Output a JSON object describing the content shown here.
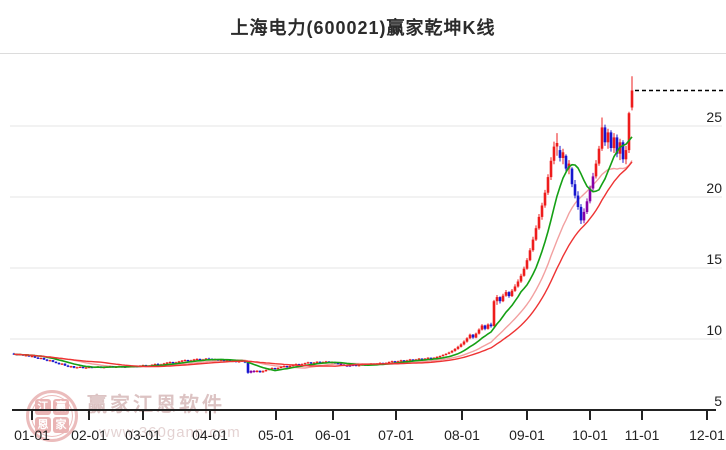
{
  "title": "上海电力(600021)赢家乾坤K线",
  "watermark": {
    "brand": "赢家江恩软件",
    "url": "www.360gann.com",
    "logo_chars": [
      "江",
      "赢",
      "恩",
      "家"
    ]
  },
  "colors": {
    "candle_up": "#ee1c1c",
    "candle_down": "#1717cf",
    "candle_signal": "#8500a8",
    "ma_fast_green": "#15a015",
    "ma_slow_red": "#ee3333",
    "ma_mid_pink": "#f2a0a0",
    "grid": "#e6e6e6",
    "axis": "#222222",
    "last_price_line": "#000000"
  },
  "chart_data": {
    "type": "candlestick",
    "title": "上海电力(600021)赢家乾坤K线",
    "x_axis": {
      "tick_labels": [
        "01-01",
        "02-01",
        "03-01",
        "04-01",
        "05-01",
        "06-01",
        "07-01",
        "08-01",
        "09-01",
        "10-01",
        "11-01",
        "12-01"
      ],
      "tick_x": [
        32,
        89,
        143,
        210,
        276,
        333,
        396,
        462,
        527,
        590,
        642,
        707
      ]
    },
    "y_axis": {
      "tick_labels": [
        "25",
        "20",
        "15",
        "10",
        "5"
      ],
      "tick_values": [
        25,
        20,
        15,
        10,
        5
      ],
      "range": [
        5,
        29.6
      ],
      "grid": true
    },
    "last_price": 27.5,
    "last_price_line": {
      "style": "dashed",
      "price": 27.5
    },
    "ma_windows": {
      "fast_green": 10,
      "mid_pink": 20,
      "slow_red": 30
    },
    "purple_indices": [
      37,
      38,
      39,
      40,
      41,
      79,
      80,
      109,
      110,
      111,
      112,
      113,
      190,
      191,
      192,
      193
    ],
    "candles": [
      [
        8.98,
        9.02,
        8.9,
        8.93
      ],
      [
        8.93,
        8.97,
        8.85,
        8.88
      ],
      [
        8.88,
        8.95,
        8.84,
        8.92
      ],
      [
        8.92,
        8.94,
        8.8,
        8.83
      ],
      [
        8.83,
        8.9,
        8.78,
        8.86
      ],
      [
        8.86,
        8.88,
        8.74,
        8.77
      ],
      [
        8.77,
        8.84,
        8.72,
        8.8
      ],
      [
        8.8,
        8.82,
        8.66,
        8.68
      ],
      [
        8.68,
        8.74,
        8.6,
        8.62
      ],
      [
        8.62,
        8.7,
        8.58,
        8.67
      ],
      [
        8.67,
        8.68,
        8.52,
        8.55
      ],
      [
        8.55,
        8.6,
        8.44,
        8.47
      ],
      [
        8.47,
        8.54,
        8.42,
        8.51
      ],
      [
        8.51,
        8.52,
        8.36,
        8.39
      ],
      [
        8.39,
        8.44,
        8.28,
        8.31
      ],
      [
        8.31,
        8.36,
        8.2,
        8.23
      ],
      [
        8.23,
        8.3,
        8.18,
        8.27
      ],
      [
        8.27,
        8.28,
        8.1,
        8.13
      ],
      [
        8.13,
        8.18,
        8.02,
        8.05
      ],
      [
        8.05,
        8.12,
        7.98,
        8.09
      ],
      [
        8.09,
        8.1,
        7.94,
        7.97
      ],
      [
        7.97,
        8.04,
        7.92,
        8.01
      ],
      [
        8.01,
        8.06,
        7.96,
        8.04
      ],
      [
        8.04,
        8.05,
        7.92,
        7.95
      ],
      [
        7.95,
        8.02,
        7.9,
        7.99
      ],
      [
        7.99,
        8.06,
        7.96,
        8.03
      ],
      [
        8.03,
        8.08,
        7.96,
        7.99
      ],
      [
        7.99,
        8.06,
        7.95,
        8.04
      ],
      [
        8.04,
        8.1,
        8.0,
        8.07
      ],
      [
        8.07,
        8.08,
        7.95,
        7.98
      ],
      [
        7.98,
        8.05,
        7.94,
        8.02
      ],
      [
        8.02,
        8.09,
        7.98,
        8.06
      ],
      [
        8.06,
        8.12,
        8.02,
        8.09
      ],
      [
        8.09,
        8.1,
        7.97,
        8.0
      ],
      [
        8.0,
        8.07,
        7.96,
        8.04
      ],
      [
        8.04,
        8.11,
        8.0,
        8.08
      ],
      [
        8.08,
        8.09,
        7.97,
        8.01
      ],
      [
        8.01,
        8.08,
        7.97,
        8.05
      ],
      [
        8.05,
        8.12,
        8.01,
        8.09
      ],
      [
        8.09,
        8.15,
        8.04,
        8.12
      ],
      [
        8.12,
        8.13,
        8.0,
        8.04
      ],
      [
        8.04,
        8.12,
        8.01,
        8.09
      ],
      [
        8.09,
        8.16,
        8.05,
        8.13
      ],
      [
        8.13,
        8.2,
        8.09,
        8.17
      ],
      [
        8.17,
        8.18,
        8.05,
        8.08
      ],
      [
        8.08,
        8.16,
        8.04,
        8.13
      ],
      [
        8.13,
        8.22,
        8.1,
        8.19
      ],
      [
        8.19,
        8.28,
        8.15,
        8.24
      ],
      [
        8.24,
        8.3,
        8.12,
        8.16
      ],
      [
        8.16,
        8.26,
        8.13,
        8.22
      ],
      [
        8.22,
        8.32,
        8.18,
        8.28
      ],
      [
        8.28,
        8.38,
        8.24,
        8.34
      ],
      [
        8.34,
        8.42,
        8.3,
        8.38
      ],
      [
        8.38,
        8.4,
        8.26,
        8.3
      ],
      [
        8.3,
        8.4,
        8.26,
        8.36
      ],
      [
        8.36,
        8.46,
        8.32,
        8.42
      ],
      [
        8.42,
        8.52,
        8.38,
        8.48
      ],
      [
        8.48,
        8.56,
        8.44,
        8.52
      ],
      [
        8.52,
        8.54,
        8.4,
        8.44
      ],
      [
        8.44,
        8.54,
        8.4,
        8.5
      ],
      [
        8.5,
        8.6,
        8.46,
        8.56
      ],
      [
        8.56,
        8.64,
        8.5,
        8.6
      ],
      [
        8.6,
        8.62,
        8.48,
        8.52
      ],
      [
        8.52,
        8.6,
        8.46,
        8.56
      ],
      [
        8.56,
        8.66,
        8.52,
        8.62
      ],
      [
        8.62,
        8.68,
        8.55,
        8.58
      ],
      [
        8.58,
        8.64,
        8.5,
        8.54
      ],
      [
        8.54,
        8.62,
        8.5,
        8.59
      ],
      [
        8.59,
        8.6,
        8.46,
        8.5
      ],
      [
        8.5,
        8.58,
        8.44,
        8.55
      ],
      [
        8.55,
        8.56,
        8.42,
        8.46
      ],
      [
        8.46,
        8.54,
        8.42,
        8.51
      ],
      [
        8.51,
        8.52,
        8.38,
        8.42
      ],
      [
        8.42,
        8.5,
        8.38,
        8.47
      ],
      [
        8.47,
        8.48,
        8.34,
        8.38
      ],
      [
        8.38,
        8.46,
        8.34,
        8.43
      ],
      [
        8.43,
        8.5,
        8.4,
        8.47
      ],
      [
        8.47,
        8.48,
        8.3,
        8.34
      ],
      [
        8.34,
        8.36,
        7.55,
        7.62
      ],
      [
        7.62,
        7.8,
        7.58,
        7.75
      ],
      [
        7.75,
        7.82,
        7.62,
        7.68
      ],
      [
        7.68,
        7.8,
        7.64,
        7.77
      ],
      [
        7.77,
        7.78,
        7.62,
        7.66
      ],
      [
        7.66,
        7.8,
        7.63,
        7.74
      ],
      [
        7.74,
        7.86,
        7.7,
        7.82
      ],
      [
        7.82,
        7.94,
        7.78,
        7.9
      ],
      [
        7.9,
        8.0,
        7.86,
        7.96
      ],
      [
        7.96,
        7.98,
        7.84,
        7.88
      ],
      [
        7.88,
        8.0,
        7.85,
        7.97
      ],
      [
        7.97,
        8.08,
        7.93,
        8.04
      ],
      [
        8.04,
        8.14,
        8.0,
        8.1
      ],
      [
        8.1,
        8.12,
        7.98,
        8.02
      ],
      [
        8.02,
        8.14,
        7.99,
        8.1
      ],
      [
        8.1,
        8.22,
        8.06,
        8.17
      ],
      [
        8.17,
        8.28,
        8.13,
        8.24
      ],
      [
        8.24,
        8.26,
        8.12,
        8.16
      ],
      [
        8.16,
        8.28,
        8.13,
        8.23
      ],
      [
        8.23,
        8.34,
        8.19,
        8.3
      ],
      [
        8.3,
        8.4,
        8.26,
        8.36
      ],
      [
        8.36,
        8.38,
        8.24,
        8.28
      ],
      [
        8.28,
        8.38,
        8.24,
        8.34
      ],
      [
        8.34,
        8.44,
        8.3,
        8.4
      ],
      [
        8.4,
        8.42,
        8.28,
        8.32
      ],
      [
        8.32,
        8.42,
        8.28,
        8.38
      ],
      [
        8.38,
        8.46,
        8.32,
        8.42
      ],
      [
        8.42,
        8.44,
        8.3,
        8.34
      ],
      [
        8.34,
        8.42,
        8.28,
        8.38
      ],
      [
        8.38,
        8.4,
        8.26,
        8.3
      ],
      [
        8.3,
        8.36,
        8.22,
        8.26
      ],
      [
        8.26,
        8.28,
        8.14,
        8.18
      ],
      [
        8.18,
        8.24,
        8.1,
        8.14
      ],
      [
        8.14,
        8.2,
        8.04,
        8.08
      ],
      [
        8.08,
        8.18,
        8.04,
        8.14
      ],
      [
        8.14,
        8.22,
        8.08,
        8.18
      ],
      [
        8.18,
        8.2,
        8.06,
        8.1
      ],
      [
        8.1,
        8.2,
        8.06,
        8.16
      ],
      [
        8.16,
        8.26,
        8.12,
        8.22
      ],
      [
        8.22,
        8.24,
        8.1,
        8.14
      ],
      [
        8.14,
        8.24,
        8.1,
        8.2
      ],
      [
        8.2,
        8.3,
        8.16,
        8.26
      ],
      [
        8.26,
        8.28,
        8.16,
        8.2
      ],
      [
        8.2,
        8.3,
        8.16,
        8.26
      ],
      [
        8.26,
        8.36,
        8.22,
        8.32
      ],
      [
        8.32,
        8.34,
        8.22,
        8.26
      ],
      [
        8.26,
        8.36,
        8.22,
        8.32
      ],
      [
        8.32,
        8.42,
        8.28,
        8.38
      ],
      [
        8.38,
        8.48,
        8.34,
        8.44
      ],
      [
        8.44,
        8.46,
        8.34,
        8.38
      ],
      [
        8.38,
        8.48,
        8.34,
        8.44
      ],
      [
        8.44,
        8.54,
        8.4,
        8.5
      ],
      [
        8.5,
        8.52,
        8.4,
        8.44
      ],
      [
        8.44,
        8.54,
        8.4,
        8.5
      ],
      [
        8.5,
        8.6,
        8.46,
        8.56
      ],
      [
        8.56,
        8.58,
        8.46,
        8.5
      ],
      [
        8.5,
        8.6,
        8.46,
        8.56
      ],
      [
        8.56,
        8.66,
        8.52,
        8.62
      ],
      [
        8.62,
        8.64,
        8.52,
        8.56
      ],
      [
        8.56,
        8.66,
        8.52,
        8.62
      ],
      [
        8.62,
        8.72,
        8.58,
        8.68
      ],
      [
        8.68,
        8.7,
        8.58,
        8.62
      ],
      [
        8.62,
        8.72,
        8.58,
        8.68
      ],
      [
        8.68,
        8.78,
        8.64,
        8.74
      ],
      [
        8.74,
        8.84,
        8.7,
        8.8
      ],
      [
        8.8,
        8.92,
        8.76,
        8.88
      ],
      [
        8.88,
        9.0,
        8.84,
        8.96
      ],
      [
        8.96,
        9.1,
        8.92,
        9.05
      ],
      [
        9.05,
        9.22,
        9.0,
        9.16
      ],
      [
        9.16,
        9.36,
        9.1,
        9.3
      ],
      [
        9.3,
        9.52,
        9.24,
        9.45
      ],
      [
        9.45,
        9.7,
        9.4,
        9.62
      ],
      [
        9.62,
        9.9,
        9.55,
        9.82
      ],
      [
        9.82,
        10.12,
        9.75,
        10.05
      ],
      [
        10.05,
        10.38,
        9.98,
        10.3
      ],
      [
        10.3,
        10.35,
        10.02,
        10.1
      ],
      [
        10.1,
        10.45,
        10.05,
        10.38
      ],
      [
        10.38,
        10.75,
        10.32,
        10.66
      ],
      [
        10.66,
        11.05,
        10.6,
        10.95
      ],
      [
        10.95,
        11.0,
        10.62,
        10.72
      ],
      [
        10.72,
        11.1,
        10.66,
        11.02
      ],
      [
        11.02,
        11.15,
        10.8,
        10.9
      ],
      [
        10.9,
        12.75,
        10.88,
        12.66
      ],
      [
        12.66,
        13.1,
        12.4,
        12.95
      ],
      [
        12.95,
        13.0,
        12.5,
        12.66
      ],
      [
        12.66,
        13.18,
        12.6,
        13.05
      ],
      [
        13.05,
        13.45,
        12.98,
        13.3
      ],
      [
        13.3,
        13.36,
        12.9,
        13.02
      ],
      [
        13.02,
        13.52,
        12.96,
        13.4
      ],
      [
        13.4,
        13.85,
        13.32,
        13.7
      ],
      [
        13.7,
        14.2,
        13.62,
        14.05
      ],
      [
        14.05,
        14.6,
        13.95,
        14.45
      ],
      [
        14.45,
        15.1,
        14.38,
        14.95
      ],
      [
        14.95,
        15.7,
        14.88,
        15.55
      ],
      [
        15.55,
        16.4,
        15.48,
        16.25
      ],
      [
        16.25,
        17.2,
        16.15,
        17.0
      ],
      [
        17.0,
        18.0,
        16.9,
        17.8
      ],
      [
        17.8,
        18.8,
        17.7,
        18.6
      ],
      [
        18.6,
        19.6,
        18.4,
        19.4
      ],
      [
        19.4,
        20.5,
        19.25,
        20.3
      ],
      [
        20.3,
        21.6,
        20.15,
        21.4
      ],
      [
        21.4,
        22.8,
        21.2,
        22.55
      ],
      [
        22.55,
        23.9,
        22.3,
        23.55
      ],
      [
        23.55,
        24.5,
        22.9,
        23.8
      ],
      [
        23.3,
        23.6,
        22.5,
        22.75
      ],
      [
        22.75,
        23.4,
        22.3,
        23.15
      ],
      [
        22.9,
        23.0,
        21.8,
        22.0
      ],
      [
        22.0,
        22.6,
        21.6,
        22.35
      ],
      [
        22.0,
        22.1,
        20.7,
        20.9
      ],
      [
        20.9,
        21.2,
        19.9,
        20.1
      ],
      [
        20.1,
        20.4,
        19.1,
        19.3
      ],
      [
        19.3,
        19.5,
        18.1,
        18.35
      ],
      [
        18.35,
        19.2,
        18.15,
        18.95
      ],
      [
        18.95,
        19.9,
        18.8,
        19.7
      ],
      [
        19.7,
        20.8,
        19.55,
        20.6
      ],
      [
        20.6,
        21.7,
        20.45,
        21.45
      ],
      [
        21.45,
        22.6,
        21.3,
        22.35
      ],
      [
        22.35,
        23.6,
        22.2,
        23.4
      ],
      [
        23.4,
        25.6,
        23.25,
        24.9
      ],
      [
        24.9,
        25.1,
        23.6,
        23.85
      ],
      [
        23.85,
        24.8,
        23.4,
        24.55
      ],
      [
        24.55,
        24.7,
        23.2,
        23.45
      ],
      [
        23.45,
        24.5,
        23.1,
        24.2
      ],
      [
        24.2,
        24.4,
        22.8,
        23.05
      ],
      [
        23.05,
        24.1,
        22.6,
        23.85
      ],
      [
        23.85,
        24.0,
        22.4,
        22.65
      ],
      [
        22.65,
        23.6,
        22.3,
        23.3
      ],
      [
        23.3,
        26.0,
        23.1,
        25.9
      ],
      [
        26.3,
        28.5,
        26.1,
        27.5
      ]
    ]
  }
}
